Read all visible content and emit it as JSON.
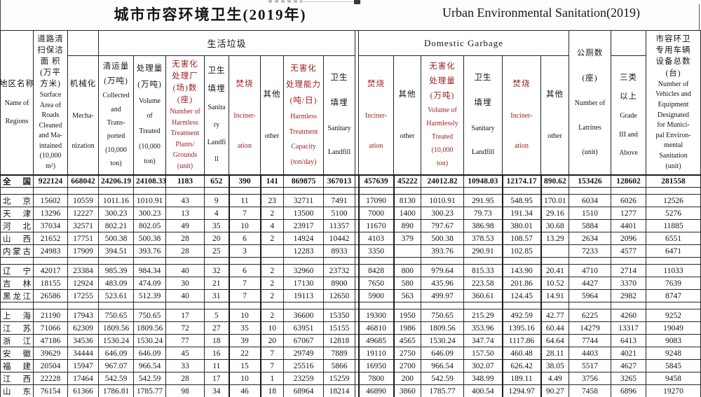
{
  "page_titles": {
    "zh": "城市市容环境卫生(2019年)",
    "en": "Urban Environmental Sanitation(2019)"
  },
  "colors": {
    "header_highlight_bg": "#f30d0d",
    "header_highlight_text": "#9c1b1b",
    "incineration_column_bg": "#a3c1e4",
    "grid": "#262626"
  },
  "table": {
    "group_headers": {
      "left": "生活垃圾",
      "right": "Domestic Garbage"
    },
    "columns": [
      {
        "id": "region",
        "zh": "地区名称",
        "en": "Name of\nRegions"
      },
      {
        "id": "road-area",
        "zh": "道路清\n扫保洁\n面 积\n(万平\n方米)",
        "en": "Surface\nArea of\nRoads\nCleaned\nand Ma-\nintained\n(10,000\nm²)"
      },
      {
        "id": "mechanization",
        "zh": "机械化",
        "en": "Mecha-\nnization"
      },
      {
        "id": "collected",
        "zh": "清运量\n(万吨)",
        "en": "Collected\nand\nTrans-\nported\n(10,000\nton)"
      },
      {
        "id": "treated",
        "zh": "处理量\n(万吨)",
        "en": "Volume\nof\nTreated\n(10,000\nton)"
      },
      {
        "id": "harmless-plants",
        "red": true,
        "zh": "无害化\n处理厂\n(场)数\n(座)",
        "en": "Number of\nHarmless\nTreatment\nPlants/\nGrounds\n(unit)"
      },
      {
        "id": "sanitary-landfill-1",
        "zh": "卫生\n填埋",
        "en": "Sanita\nry\nLandfi\nll"
      },
      {
        "id": "incineration-1",
        "red": true,
        "blue": true,
        "zh": "焚烧",
        "en": "Inciner-\nation"
      },
      {
        "id": "other-1",
        "zh": "其他",
        "en": "other"
      },
      {
        "id": "harmless-capacity",
        "red": true,
        "zh": "无害化\n处理能力\n(吨/日)",
        "en": "Harmless\nTreatment\nCapacity\n(ton/day)"
      },
      {
        "id": "sanitary-landfill-2",
        "zh": "卫生\n填埋",
        "en": "Sanitary\nLandfill"
      },
      {
        "id": "incineration-2",
        "red": true,
        "blue": true,
        "zh": "焚烧",
        "en": "Inciner-\nation"
      },
      {
        "id": "other-2",
        "zh": "其他",
        "en": "other"
      },
      {
        "id": "harmless-volume",
        "red": true,
        "zh": "无害化\n处理量\n(万吨)",
        "en": "Volume of\nHarmlessly\nTreated\n(10,000\nton)"
      },
      {
        "id": "sanitary-landfill-3",
        "zh": "卫生\n填埋",
        "en": "Sanitary\nLandfill"
      },
      {
        "id": "incineration-3",
        "red": true,
        "blue": true,
        "zh": "焚烧",
        "en": "Inciner-\nation"
      },
      {
        "id": "other-3",
        "zh": "其他",
        "en": "other"
      },
      {
        "id": "latrines",
        "zh": "公厕数\n(座)",
        "en": "Number of\nLatrines\n(unit)"
      },
      {
        "id": "grade-iii",
        "zh": "三类\n以上",
        "en": "Grade\nIII and\nAbove"
      },
      {
        "id": "vehicles",
        "zh": "市容环卫\n专用车辆\n设备总数\n(台)",
        "en": "Number of\nVehicles and\nEquipment\nDesignated\nfor Munici-\npal Environ-\nmental\nSanitation\n(unit)"
      }
    ],
    "rows": [
      {
        "region": "全国",
        "total": true,
        "values": [
          "922124",
          "668042",
          "24206.19",
          "24108.33",
          "1183",
          "652",
          "390",
          "141",
          "869875",
          "367013",
          "457639",
          "45222",
          "24012.82",
          "10948.03",
          "12174.17",
          "890.62",
          "153426",
          "128602",
          "281558"
        ]
      },
      {
        "spacer": true
      },
      {
        "region": "北京",
        "values": [
          "15602",
          "10559",
          "1011.16",
          "1010.91",
          "43",
          "9",
          "11",
          "23",
          "32711",
          "7491",
          "17090",
          "8130",
          "1010.91",
          "291.95",
          "548.95",
          "170.01",
          "6034",
          "6026",
          "12526"
        ]
      },
      {
        "region": "天津",
        "values": [
          "13296",
          "12227",
          "300.23",
          "300.23",
          "13",
          "4",
          "7",
          "2",
          "13500",
          "5100",
          "7000",
          "1400",
          "300.23",
          "79.73",
          "191.34",
          "29.16",
          "1510",
          "1277",
          "5276"
        ]
      },
      {
        "region": "河北",
        "values": [
          "37034",
          "32571",
          "802.21",
          "802.05",
          "49",
          "35",
          "10",
          "4",
          "23917",
          "11357",
          "11670",
          "890",
          "797.67",
          "386.98",
          "380.01",
          "30.68",
          "5884",
          "4401",
          "11885"
        ]
      },
      {
        "region": "山西",
        "values": [
          "21652",
          "17751",
          "500.38",
          "500.38",
          "28",
          "20",
          "6",
          "2",
          "14924",
          "10442",
          "4103",
          "379",
          "500.38",
          "378.53",
          "108.57",
          "13.29",
          "2634",
          "2096",
          "6551"
        ]
      },
      {
        "region": "内蒙古",
        "values": [
          "24983",
          "17909",
          "394.51",
          "393.76",
          "28",
          "25",
          "3",
          "",
          "12283",
          "8933",
          "3350",
          "",
          "393.76",
          "290.91",
          "102.85",
          "",
          "7233",
          "4577",
          "6471"
        ]
      },
      {
        "spacer": true
      },
      {
        "region": "辽宁",
        "values": [
          "42017",
          "23384",
          "985.39",
          "984.34",
          "40",
          "32",
          "6",
          "2",
          "32960",
          "23732",
          "8428",
          "800",
          "979.64",
          "815.33",
          "143.90",
          "20.41",
          "4710",
          "2714",
          "11033"
        ]
      },
      {
        "region": "吉林",
        "values": [
          "18155",
          "12924",
          "483.09",
          "474.09",
          "30",
          "21",
          "7",
          "2",
          "17130",
          "8900",
          "7650",
          "580",
          "435.96",
          "223.58",
          "201.86",
          "10.52",
          "4427",
          "3370",
          "7639"
        ]
      },
      {
        "region": "黑龙江",
        "values": [
          "26586",
          "17255",
          "523.61",
          "512.39",
          "40",
          "31",
          "7",
          "2",
          "19113",
          "12650",
          "5900",
          "563",
          "499.97",
          "360.61",
          "124.45",
          "14.91",
          "5964",
          "2982",
          "8747"
        ]
      },
      {
        "spacer": true
      },
      {
        "region": "上海",
        "values": [
          "21190",
          "17943",
          "750.65",
          "750.65",
          "17",
          "5",
          "10",
          "2",
          "36600",
          "15350",
          "19300",
          "1950",
          "750.65",
          "215.29",
          "492.59",
          "42.77",
          "6225",
          "4260",
          "9252"
        ]
      },
      {
        "region": "江苏",
        "values": [
          "71066",
          "62309",
          "1809.56",
          "1809.56",
          "72",
          "27",
          "35",
          "10",
          "63951",
          "15155",
          "46810",
          "1986",
          "1809.56",
          "353.96",
          "1395.16",
          "60.44",
          "14279",
          "13317",
          "19049"
        ]
      },
      {
        "region": "浙江",
        "values": [
          "47186",
          "34536",
          "1530.24",
          "1530.24",
          "77",
          "18",
          "39",
          "20",
          "67067",
          "12818",
          "49685",
          "4565",
          "1530.24",
          "347.74",
          "1117.86",
          "64.64",
          "7744",
          "6413",
          "9083"
        ]
      },
      {
        "region": "安徽",
        "values": [
          "39629",
          "34444",
          "646.09",
          "646.09",
          "45",
          "16",
          "22",
          "7",
          "29749",
          "7889",
          "19110",
          "2750",
          "646.09",
          "157.50",
          "460.48",
          "28.11",
          "4403",
          "4021",
          "9248"
        ]
      },
      {
        "region": "福建",
        "values": [
          "20504",
          "15947",
          "967.07",
          "966.54",
          "33",
          "11",
          "15",
          "7",
          "25516",
          "5866",
          "16950",
          "2700",
          "966.54",
          "302.07",
          "626.42",
          "38.05",
          "5517",
          "4627",
          "5845"
        ]
      },
      {
        "region": "江西",
        "values": [
          "22228",
          "17464",
          "542.59",
          "542.59",
          "28",
          "17",
          "10",
          "1",
          "23259",
          "15259",
          "7800",
          "200",
          "542.59",
          "348.99",
          "189.11",
          "4.49",
          "3756",
          "3265",
          "9458"
        ]
      },
      {
        "region": "山东",
        "values": [
          "76154",
          "61366",
          "1786.81",
          "1785.77",
          "98",
          "34",
          "46",
          "18",
          "68964",
          "18214",
          "46890",
          "3860",
          "1785.77",
          "400.54",
          "1294.97",
          "90.27",
          "7458",
          "6896",
          "19270"
        ]
      }
    ]
  }
}
